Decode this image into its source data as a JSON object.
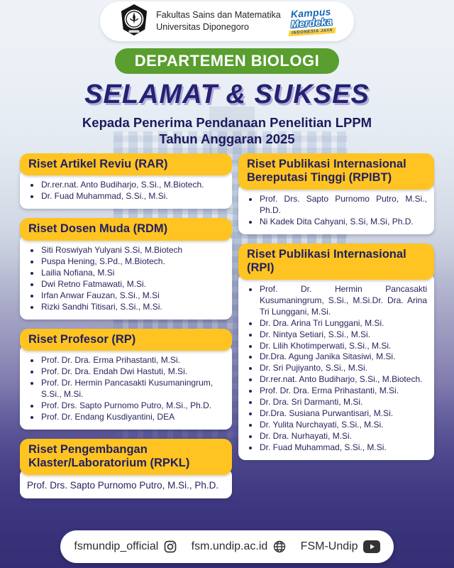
{
  "header": {
    "faculty_line1": "Fakultas Sains dan Matematika",
    "faculty_line2": "Universitas Diponegoro",
    "kampus_line1": "Kampus",
    "kampus_line2": "Merdeka",
    "kampus_tag": "INDONESIA JAYA"
  },
  "banner": {
    "department": "DEPARTEMEN BIOLOGI"
  },
  "title": {
    "main": "SELAMAT & SUKSES",
    "subtitle_line1": "Kepada Penerima Pendanaan Penelitian LPPM",
    "subtitle_line2": "Tahun Anggaran 2025"
  },
  "columns": {
    "left": [
      {
        "id": "rar",
        "title": "Riset Artikel Reviu (RAR)",
        "bulleted": true,
        "justify": false,
        "items": [
          "Dr.rer.nat. Anto Budiharjo, S.Si., M.Biotech.",
          "Dr. Fuad Muhammad, S.Si., M.Si."
        ]
      },
      {
        "id": "rdm",
        "title": "Riset Dosen Muda (RDM)",
        "bulleted": true,
        "justify": false,
        "items": [
          "Siti Roswiyah Yulyani S.Si, M.Biotech",
          "Puspa Hening, S.Pd., M.Biotech.",
          "Lailia Nofiana, M.Si",
          "Dwi Retno Fatmawati, M.Si.",
          "Irfan Anwar Fauzan, S.Si., M.Si",
          "Rizki Sandhi Titisari, S.Si., M.Si."
        ]
      },
      {
        "id": "rp",
        "title": "Riset Profesor (RP)",
        "bulleted": true,
        "justify": false,
        "items": [
          "Prof. Dr. Dra. Erma Prihastanti, M.Si.",
          "Prof. Dr. Dra. Endah Dwi Hastuti, M.Si.",
          "Prof. Dr. Hermin Pancasakti Kusumaningrum, S.Si., M.Si.",
          "Prof. Drs. Sapto Purnomo Putro, M.Si., Ph.D.",
          "Prof. Dr. Endang Kusdiyantini, DEA"
        ]
      },
      {
        "id": "rpkl",
        "title": "Riset Pengembangan Klaster/Laboratorium (RPKL)",
        "bulleted": false,
        "justify": true,
        "items": [
          "Prof. Drs. Sapto Purnomo Putro, M.Si., Ph.D."
        ]
      }
    ],
    "right": [
      {
        "id": "rpibt",
        "title": "Riset Publikasi Internasional Bereputasi Tinggi (RPIBT)",
        "bulleted": true,
        "justify": true,
        "items": [
          "Prof. Drs. Sapto Purnomo Putro, M.Si., Ph.D.",
          "Ni Kadek Dita Cahyani, S.Si, M.Si, Ph.D."
        ]
      },
      {
        "id": "rpi",
        "title": "Riset Publikasi Internasional (RPI)",
        "bulleted": true,
        "justify": true,
        "items": [
          "Prof. Dr. Hermin Pancasakti Kusumaningrum, S.Si., M.Si.Dr. Dra. Arina Tri Lunggani, M.Si.",
          "Dr. Dra. Arina Tri Lunggani, M.Si.",
          "Dr. Nintya Setiari, S.Si., M.Si.",
          "Dr. Lilih Khotimperwati, S.Si., M.Si.",
          "Dr.Dra. Agung Janika Sitasiwi, M.Si.",
          "Dr. Sri Pujiyanto, S.Si., M.Si.",
          "Dr.rer.nat. Anto Budiharjo, S.Si., M.Biotech.",
          "Prof. Dr. Dra. Erma Prihastanti, M.Si.",
          "Dr. Dra. Sri Darmanti, M.Si.",
          "Dr.Dra. Susiana Purwantisari, M.Si.",
          "Dr. Yulita Nurchayati, S.Si., M.Si.",
          "Dr. Dra. Nurhayati, M.Si.",
          "Dr. Fuad Muhammad, S.Si., M.Si."
        ]
      }
    ]
  },
  "footer": {
    "items": [
      {
        "label": "fsmundip_official",
        "icon": "instagram-icon"
      },
      {
        "label": "fsm.undip.ac.id",
        "icon": "globe-icon"
      },
      {
        "label": "FSM-Undip",
        "icon": "youtube-icon"
      }
    ]
  },
  "colors": {
    "accent_yellow": "#ffc421",
    "banner_green": "#599e2e",
    "navy_text": "#23205f",
    "title_purple": "#262271",
    "background_bottom": "#38327d"
  }
}
